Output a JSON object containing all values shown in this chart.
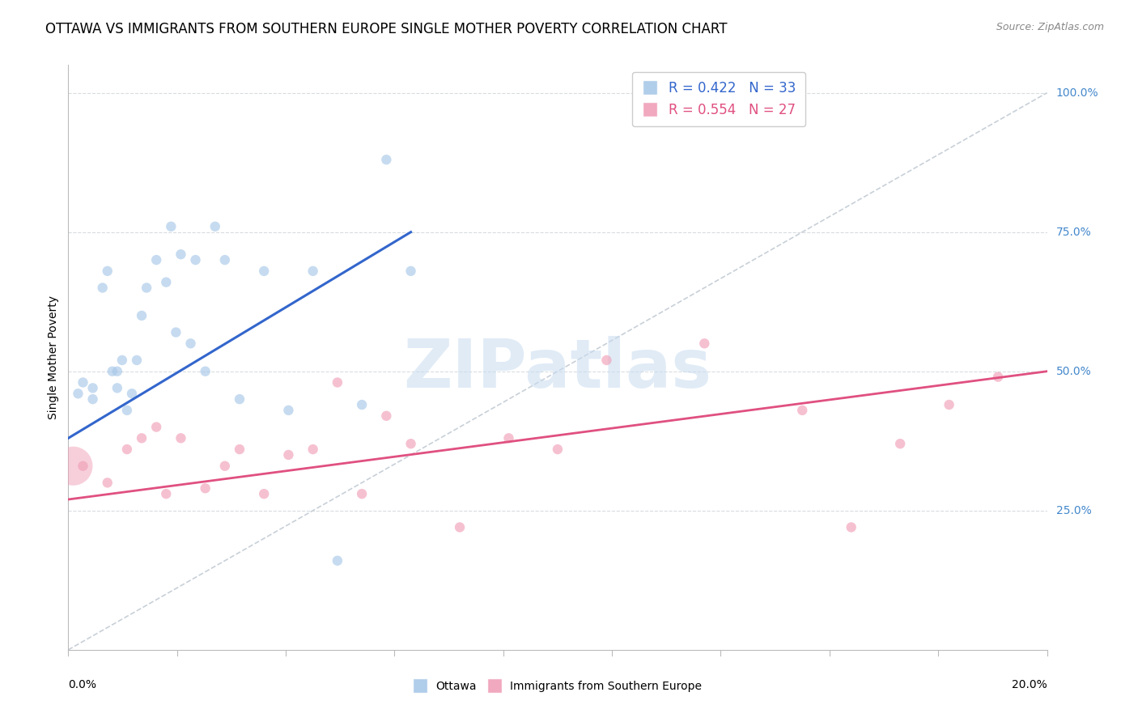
{
  "title": "OTTAWA VS IMMIGRANTS FROM SOUTHERN EUROPE SINGLE MOTHER POVERTY CORRELATION CHART",
  "source": "Source: ZipAtlas.com",
  "ylabel": "Single Mother Poverty",
  "blue_color": "#A8C8E8",
  "pink_color": "#F0A0B8",
  "blue_line_color": "#3366CC",
  "pink_line_color": "#E05080",
  "diag_line_color": "#C8D0D8",
  "background_color": "#FFFFFF",
  "grid_color": "#D8DCE0",
  "ottawa_x": [
    0.2,
    0.3,
    0.5,
    0.5,
    0.7,
    0.8,
    0.9,
    1.0,
    1.0,
    1.1,
    1.2,
    1.3,
    1.4,
    1.5,
    1.6,
    1.8,
    2.0,
    2.1,
    2.2,
    2.3,
    2.5,
    2.6,
    2.8,
    3.0,
    3.2,
    3.5,
    4.0,
    4.5,
    5.0,
    5.5,
    6.0,
    6.5,
    7.0
  ],
  "ottawa_y": [
    46,
    48,
    45,
    47,
    65,
    68,
    50,
    47,
    50,
    52,
    43,
    46,
    52,
    60,
    65,
    70,
    66,
    76,
    57,
    71,
    55,
    70,
    50,
    76,
    70,
    45,
    68,
    43,
    68,
    16,
    44,
    88,
    68
  ],
  "ottawa_sizes": [
    80,
    80,
    80,
    80,
    80,
    80,
    80,
    80,
    80,
    80,
    80,
    80,
    80,
    80,
    80,
    80,
    80,
    80,
    80,
    80,
    80,
    80,
    80,
    80,
    80,
    80,
    80,
    80,
    80,
    80,
    80,
    80,
    80
  ],
  "immigrant_x": [
    0.3,
    0.8,
    1.2,
    1.5,
    1.8,
    2.0,
    2.3,
    2.8,
    3.2,
    3.5,
    4.0,
    4.5,
    5.0,
    5.5,
    6.0,
    6.5,
    7.0,
    8.0,
    9.0,
    10.0,
    11.0,
    13.0,
    15.0,
    16.0,
    17.0,
    18.0,
    19.0
  ],
  "immigrant_y": [
    33,
    30,
    36,
    38,
    40,
    28,
    38,
    29,
    33,
    36,
    28,
    35,
    36,
    48,
    28,
    42,
    37,
    22,
    38,
    36,
    52,
    55,
    43,
    22,
    37,
    44,
    49
  ],
  "immigrant_sizes": [
    80,
    80,
    80,
    80,
    80,
    80,
    80,
    80,
    80,
    80,
    80,
    80,
    80,
    80,
    80,
    80,
    80,
    80,
    80,
    80,
    80,
    80,
    80,
    80,
    80,
    80,
    80
  ],
  "large_pink_x": 0.1,
  "large_pink_y": 33,
  "large_pink_size": 1200,
  "blue_line_x": [
    0.0,
    7.0
  ],
  "blue_line_y": [
    38.0,
    75.0
  ],
  "pink_line_x": [
    0.0,
    20.0
  ],
  "pink_line_y": [
    27.0,
    50.0
  ],
  "diag_line_x": [
    0.0,
    20.0
  ],
  "diag_line_y": [
    0.0,
    100.0
  ],
  "xlim": [
    0.0,
    20.0
  ],
  "ylim": [
    0.0,
    105.0
  ],
  "right_yticks": [
    25,
    50,
    75,
    100
  ],
  "right_yticklabels": [
    "25.0%",
    "50.0%",
    "75.0%",
    "100.0%"
  ],
  "watermark_text": "ZIPatlas",
  "title_fontsize": 12,
  "source_fontsize": 9
}
